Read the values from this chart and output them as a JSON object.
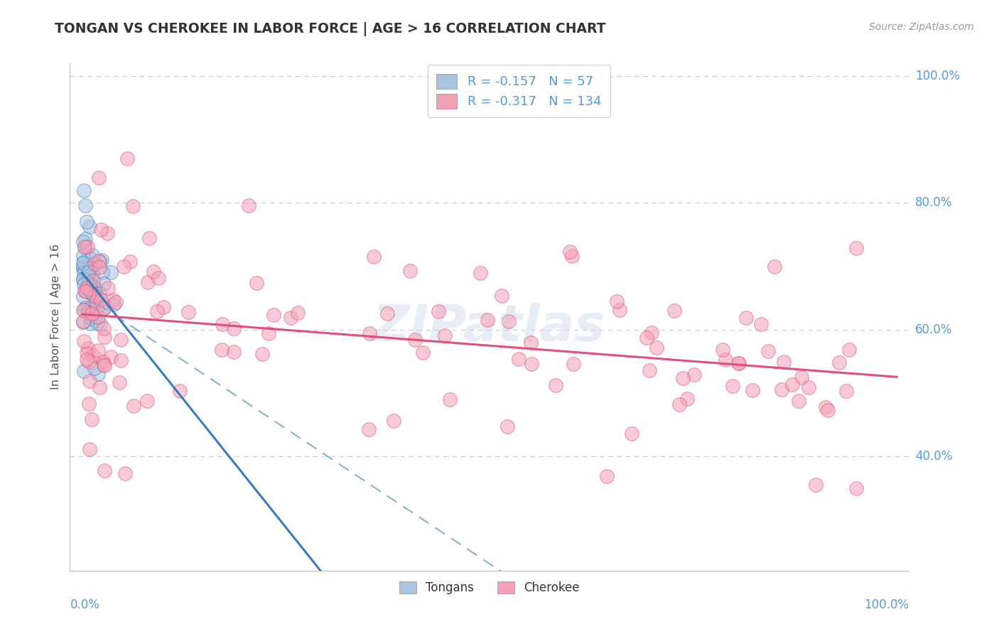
{
  "title": "TONGAN VS CHEROKEE IN LABOR FORCE | AGE > 16 CORRELATION CHART",
  "source": "Source: ZipAtlas.com",
  "ylabel": "In Labor Force | Age > 16",
  "tongan_R": -0.157,
  "tongan_N": 57,
  "cherokee_R": -0.317,
  "cherokee_N": 134,
  "tongan_color": "#a8c4e0",
  "cherokee_color": "#f4a0b5",
  "tongan_line_color": "#3a7abf",
  "cherokee_line_color": "#e0507a",
  "dashed_line_color": "#8ab0cc",
  "background_color": "#ffffff",
  "grid_color": "#cccccc",
  "title_color": "#333333",
  "label_color": "#5599dd",
  "xlim": [
    0.0,
    1.0
  ],
  "ylim": [
    0.22,
    1.02
  ],
  "yticks": [
    0.4,
    0.6,
    0.8,
    1.0
  ],
  "seed": 17
}
